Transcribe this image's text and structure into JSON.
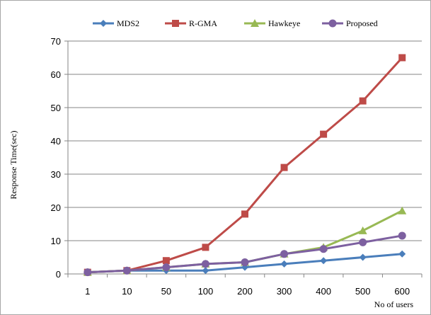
{
  "colors": {
    "MDS2": "#4a7ebb",
    "R-GMA": "#be4b48",
    "Hawkeye": "#98b954",
    "Proposed": "#7d60a0",
    "grid": "#868686",
    "axis": "#868686"
  },
  "chart_data": {
    "type": "line",
    "title": "",
    "xlabel": "No of users",
    "ylabel": "Response Time(sec)",
    "categories": [
      "1",
      "10",
      "50",
      "100",
      "200",
      "300",
      "400",
      "500",
      "600"
    ],
    "ylim": [
      0,
      70
    ],
    "yticks": [
      0,
      10,
      20,
      30,
      40,
      50,
      60,
      70
    ],
    "grid": "horizontal",
    "legend_position": "top",
    "series": [
      {
        "name": "MDS2",
        "marker": "diamond",
        "values": [
          0.5,
          1,
          1,
          1,
          2,
          3,
          4,
          5,
          6
        ]
      },
      {
        "name": "R-GMA",
        "marker": "square",
        "values": [
          0.5,
          1,
          4,
          8,
          18,
          32,
          42,
          52,
          65
        ]
      },
      {
        "name": "Hawkeye",
        "marker": "triangle",
        "values": [
          0.5,
          1,
          2,
          3,
          3.5,
          6,
          8,
          13,
          19
        ]
      },
      {
        "name": "Proposed",
        "marker": "circle",
        "values": [
          0.5,
          1,
          2,
          3,
          3.5,
          6,
          7.5,
          9.5,
          11.5
        ]
      }
    ]
  }
}
